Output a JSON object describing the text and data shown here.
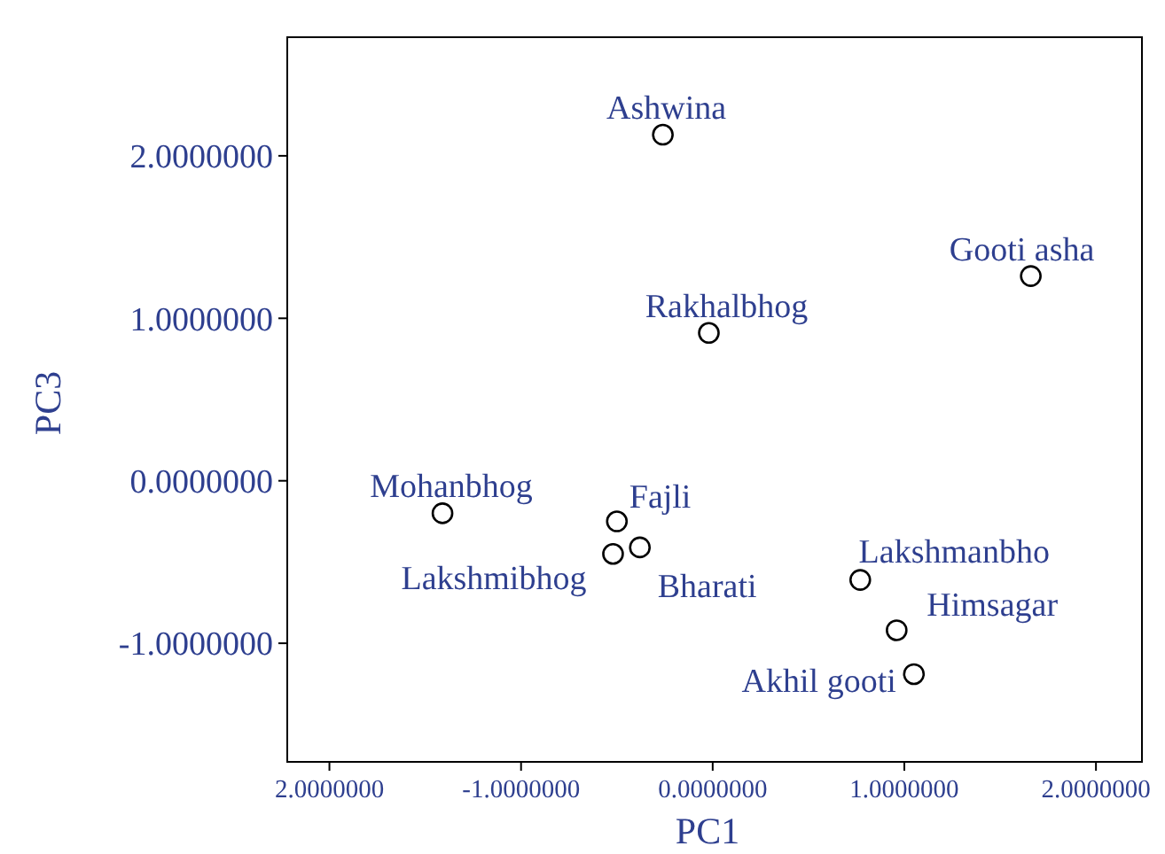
{
  "chart_data": {
    "type": "scatter",
    "xlabel": "PC1",
    "ylabel": "PC3",
    "x": [
      -0.26,
      1.66,
      -0.02,
      -1.41,
      -0.5,
      -0.52,
      -0.38,
      0.77,
      0.96,
      1.05
    ],
    "values": [
      2.13,
      1.26,
      0.91,
      -0.2,
      -0.25,
      -0.45,
      -0.41,
      -0.61,
      -0.92,
      -1.19
    ],
    "annotations": [
      {
        "text": "Ashwina",
        "x": -0.26,
        "y": 2.13
      },
      {
        "text": "Gooti asha",
        "x": 1.66,
        "y": 1.26
      },
      {
        "text": "Rakhalbhog",
        "x": -0.02,
        "y": 0.91
      },
      {
        "text": "Mohanbhog",
        "x": -1.41,
        "y": -0.2
      },
      {
        "text": "Fajli",
        "x": -0.5,
        "y": -0.25
      },
      {
        "text": "Lakshmibhog",
        "x": -0.52,
        "y": -0.45
      },
      {
        "text": "Bharati",
        "x": -0.38,
        "y": -0.41
      },
      {
        "text": "Lakshmanbho",
        "x": 0.77,
        "y": -0.61
      },
      {
        "text": "Himsagar",
        "x": 0.96,
        "y": -0.92
      },
      {
        "text": "Akhil gooti",
        "x": 1.05,
        "y": -1.19
      }
    ],
    "color": "#000000",
    "marker": "circle",
    "grid": false,
    "xlim": [
      -2.22,
      2.24
    ],
    "ylim": [
      -1.73,
      2.73
    ],
    "xticks": [
      {
        "value": -2,
        "label": "2.0000000"
      },
      {
        "value": -1,
        "label": "-1.0000000"
      },
      {
        "value": 0,
        "label": "0.0000000"
      },
      {
        "value": 1,
        "label": "1.0000000"
      },
      {
        "value": 2,
        "label": "2.0000000"
      }
    ],
    "yticks": [
      {
        "value": -1,
        "label": "-1.0000000"
      },
      {
        "value": 0,
        "label": "0.0000000"
      },
      {
        "value": 1,
        "label": "1.0000000"
      },
      {
        "value": 2,
        "label": "2.0000000"
      }
    ]
  }
}
